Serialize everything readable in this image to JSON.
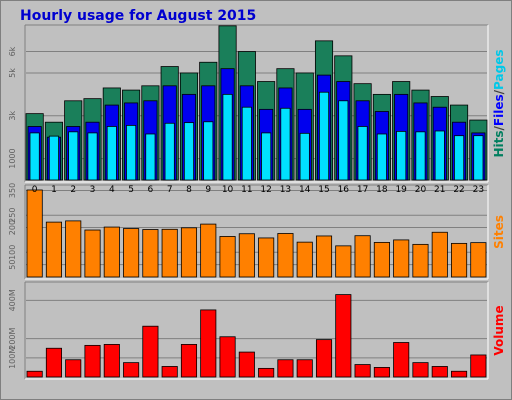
{
  "chart_data": {
    "type": "bar",
    "title": "Hourly usage for August 2015",
    "categories": [
      "0",
      "1",
      "2",
      "3",
      "4",
      "5",
      "6",
      "7",
      "8",
      "9",
      "10",
      "11",
      "12",
      "13",
      "14",
      "15",
      "16",
      "17",
      "18",
      "19",
      "20",
      "21",
      "22",
      "23"
    ],
    "panels": [
      {
        "id": "hits",
        "side_labels": [
          {
            "text": "Hits",
            "color": "#007f5f"
          },
          {
            "text": "/",
            "color": "#404040"
          },
          {
            "text": "Files",
            "color": "#0000ff"
          },
          {
            "text": "/",
            "color": "#404040"
          },
          {
            "text": "Pages",
            "color": "#00c8e8"
          }
        ],
        "y_ticks": [
          "1000",
          "3k",
          "5k",
          "6k"
        ],
        "ylim": [
          0,
          7100
        ],
        "series": [
          {
            "name": "Hits",
            "color": "#1a7f5a",
            "values": [
              3100,
              2700,
              3700,
              3800,
              4300,
              4200,
              4400,
              5300,
              5000,
              5500,
              7200,
              6000,
              4600,
              5200,
              5000,
              6500,
              5800,
              4500,
              4000,
              4600,
              4200,
              3900,
              3500,
              2800
            ]
          },
          {
            "name": "Files",
            "color": "#0000ee",
            "values": [
              2500,
              2000,
              2500,
              2700,
              3500,
              3600,
              3700,
              4400,
              4000,
              4400,
              5200,
              4400,
              3300,
              4300,
              3300,
              4900,
              4600,
              3700,
              3200,
              4000,
              3600,
              3400,
              2700,
              2200
            ]
          },
          {
            "name": "Pages",
            "color": "#00e0ff",
            "values": [
              2200,
              2050,
              2250,
              2200,
              2500,
              2550,
              2150,
              2650,
              2680,
              2720,
              4000,
              3400,
              2200,
              3350,
              2180,
              4100,
              3700,
              2500,
              2150,
              2270,
              2250,
              2290,
              2070,
              2070
            ]
          }
        ]
      },
      {
        "id": "sites",
        "side_labels": [
          {
            "text": "Sites",
            "color": "#ff8000"
          }
        ],
        "y_ticks": [
          "50",
          "100",
          "200",
          "250",
          "350"
        ],
        "ylim": [
          0,
          360
        ],
        "series": [
          {
            "name": "Sites",
            "color": "#ff8000",
            "values": [
              352,
              222,
              227,
              190,
              202,
              196,
              192,
              193,
              199,
              214,
              164,
              175,
              158,
              176,
              141,
              166,
              126,
              167,
              140,
              150,
              132,
              181,
              136,
              139
            ]
          }
        ]
      },
      {
        "id": "volume",
        "side_labels": [
          {
            "text": "Volume",
            "color": "#ff0000"
          }
        ],
        "y_ticks": [
          "100M",
          "200M",
          "400M"
        ],
        "ylim": [
          0,
          480
        ],
        "series": [
          {
            "name": "Volume",
            "color": "#ff0000",
            "values": [
              30,
              150,
              90,
              165,
              170,
              75,
              265,
              55,
              170,
              350,
              210,
              130,
              45,
              90,
              90,
              195,
              430,
              65,
              50,
              180,
              75,
              55,
              30,
              115
            ]
          }
        ]
      }
    ]
  }
}
